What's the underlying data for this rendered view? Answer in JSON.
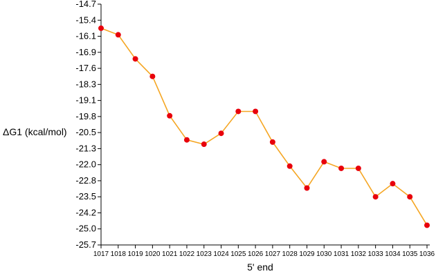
{
  "chart_data": {
    "type": "line",
    "title": "",
    "xlabel": "5' end",
    "ylabel": "ΔG1 (kcal/mol)",
    "x": [
      1017,
      1018,
      1019,
      1020,
      1021,
      1022,
      1023,
      1024,
      1025,
      1026,
      1027,
      1028,
      1029,
      1030,
      1031,
      1032,
      1033,
      1034,
      1035,
      1036
    ],
    "series": [
      {
        "values": [
          -15.8,
          -16.1,
          -17.2,
          -18.0,
          -19.8,
          -20.9,
          -21.1,
          -20.6,
          -19.6,
          -19.6,
          -21.0,
          -22.1,
          -23.1,
          -21.9,
          -22.2,
          -22.2,
          -23.5,
          -22.9,
          -23.5,
          -24.8
        ],
        "color": "#f5a623",
        "marker_color": "#e8000b"
      }
    ],
    "ylim": [
      -25.7,
      -14.7
    ],
    "yticks": [
      "-14.7",
      "-15.4",
      "-16.1",
      "-16.9",
      "-17.6",
      "-18.3",
      "-19.1",
      "-19.8",
      "-20.5",
      "-21.3",
      "-22.0",
      "-22.8",
      "-23.5",
      "-24.2",
      "-25.0",
      "-25.7"
    ],
    "xticks": [
      "1017",
      "1018",
      "1019",
      "1020",
      "1021",
      "1022",
      "1023",
      "1024",
      "1025",
      "1026",
      "1027",
      "1028",
      "1029",
      "1030",
      "1031",
      "1032",
      "1033",
      "1034",
      "1035",
      "1036"
    ],
    "grid": false,
    "legend": "none"
  }
}
